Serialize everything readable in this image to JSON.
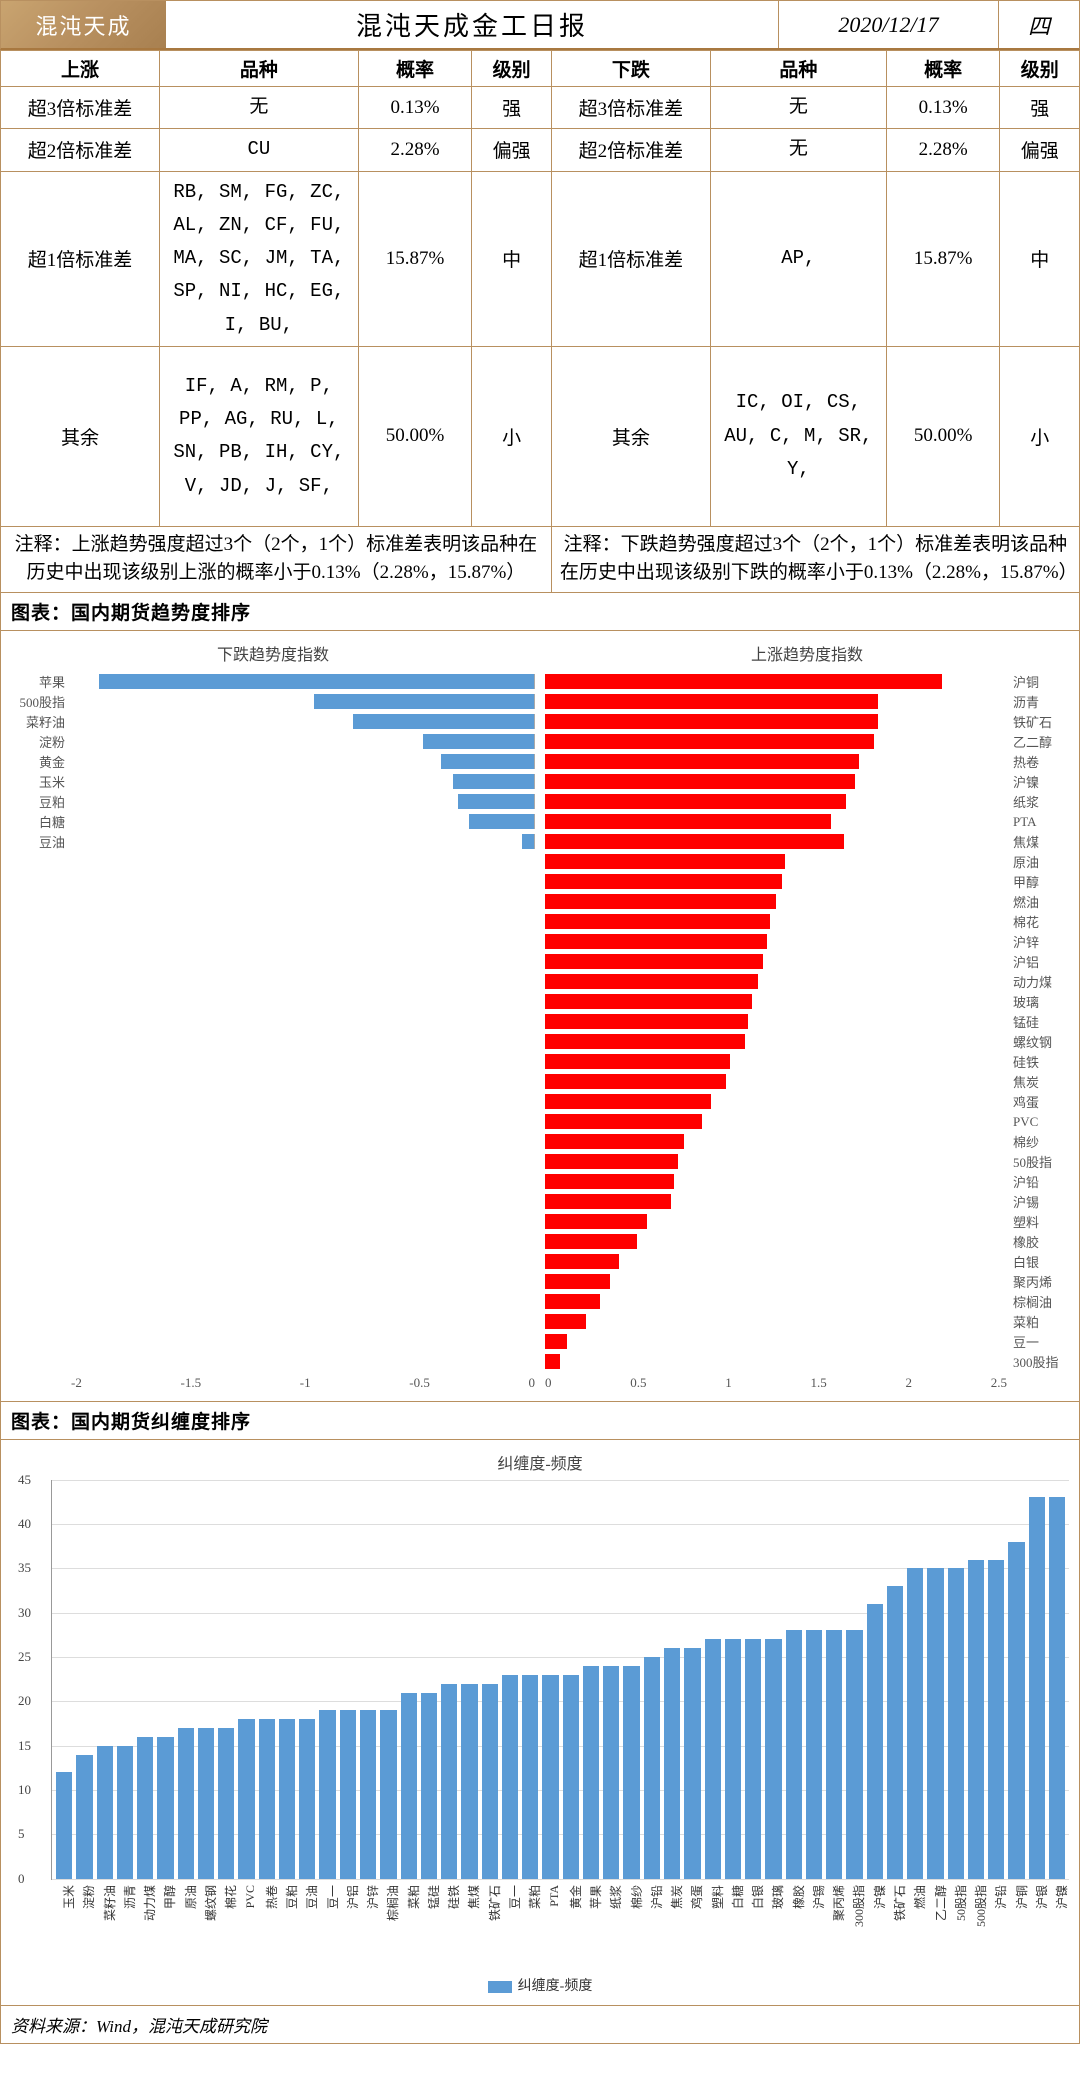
{
  "header": {
    "logo_text": "混沌天成",
    "title": "混沌天成金工日报",
    "date": "2020/12/17",
    "dow": "四"
  },
  "prob_table": {
    "up_header": "上涨",
    "down_header": "下跌",
    "col_variety": "品种",
    "col_prob": "概率",
    "col_level": "级别",
    "rows": [
      {
        "label": "超3倍标准差",
        "up_var": "无",
        "up_prob": "0.13%",
        "up_lvl": "强",
        "down_var": "无",
        "down_prob": "0.13%",
        "down_lvl": "强"
      },
      {
        "label": "超2倍标准差",
        "up_var": "CU",
        "up_prob": "2.28%",
        "up_lvl": "偏强",
        "down_var": "无",
        "down_prob": "2.28%",
        "down_lvl": "偏强"
      },
      {
        "label": "超1倍标准差",
        "up_var": "RB, SM, FG, ZC, AL, ZN, CF, FU, MA, SC, JM, TA, SP, NI, HC, EG, I, BU,",
        "up_prob": "15.87%",
        "up_lvl": "中",
        "down_var": "AP,",
        "down_prob": "15.87%",
        "down_lvl": "中"
      },
      {
        "label": "其余",
        "up_var": "IF, A, RM, P, PP, AG, RU, L, SN, PB, IH, CY, V, JD, J, SF,",
        "up_prob": "50.00%",
        "up_lvl": "小",
        "down_var": "IC, OI, CS, AU, C, M, SR, Y,",
        "down_prob": "50.00%",
        "down_lvl": "小"
      }
    ],
    "note_up": "注释：上涨趋势强度超过3个（2个，1个）标准差表明该品种在历史中出现该级别上涨的概率小于0.13%（2.28%，15.87%）",
    "note_down": "注释：下跌趋势强度超过3个（2个，1个）标准差表明该品种在历史中出现该级别下跌的概率小于0.13%（2.28%，15.87%）"
  },
  "chart1": {
    "section": "图表：国内期货趋势度排序",
    "left_title": "下跌趋势度指数",
    "right_title": "上涨趋势度指数",
    "left_min": -2,
    "left_max": 0,
    "right_min": 0,
    "right_max": 2.5,
    "left_ticks": [
      "-2",
      "-1.5",
      "-1",
      "-0.5",
      "0"
    ],
    "right_ticks": [
      "0",
      "0.5",
      "1",
      "1.5",
      "2",
      "2.5"
    ],
    "color_down": "#5b9bd5",
    "color_up": "#ff0000",
    "down": [
      {
        "name": "苹果",
        "v": -1.88
      },
      {
        "name": "500股指",
        "v": -0.95
      },
      {
        "name": "菜籽油",
        "v": -0.78
      },
      {
        "name": "淀粉",
        "v": -0.48
      },
      {
        "name": "黄金",
        "v": -0.4
      },
      {
        "name": "玉米",
        "v": -0.35
      },
      {
        "name": "豆粕",
        "v": -0.33
      },
      {
        "name": "白糖",
        "v": -0.28
      },
      {
        "name": "豆油",
        "v": -0.05
      }
    ],
    "up": [
      {
        "name": "沪铜",
        "v": 2.15
      },
      {
        "name": "沥青",
        "v": 1.8
      },
      {
        "name": "铁矿石",
        "v": 1.8
      },
      {
        "name": "乙二醇",
        "v": 1.78
      },
      {
        "name": "热卷",
        "v": 1.7
      },
      {
        "name": "沪镍",
        "v": 1.68
      },
      {
        "name": "纸浆",
        "v": 1.63
      },
      {
        "name": "PTA",
        "v": 1.55
      },
      {
        "name": "焦煤",
        "v": 1.62
      },
      {
        "name": "原油",
        "v": 1.3
      },
      {
        "name": "甲醇",
        "v": 1.28
      },
      {
        "name": "燃油",
        "v": 1.25
      },
      {
        "name": "棉花",
        "v": 1.22
      },
      {
        "name": "沪锌",
        "v": 1.2
      },
      {
        "name": "沪铝",
        "v": 1.18
      },
      {
        "name": "动力煤",
        "v": 1.15
      },
      {
        "name": "玻璃",
        "v": 1.12
      },
      {
        "name": "锰硅",
        "v": 1.1
      },
      {
        "name": "螺纹钢",
        "v": 1.08
      },
      {
        "name": "硅铁",
        "v": 1.0
      },
      {
        "name": "焦炭",
        "v": 0.98
      },
      {
        "name": "鸡蛋",
        "v": 0.9
      },
      {
        "name": "PVC",
        "v": 0.85
      },
      {
        "name": "棉纱",
        "v": 0.75
      },
      {
        "name": "50股指",
        "v": 0.72
      },
      {
        "name": "沪铅",
        "v": 0.7
      },
      {
        "name": "沪锡",
        "v": 0.68
      },
      {
        "name": "塑料",
        "v": 0.55
      },
      {
        "name": "橡胶",
        "v": 0.5
      },
      {
        "name": "白银",
        "v": 0.4
      },
      {
        "name": "聚丙烯",
        "v": 0.35
      },
      {
        "name": "棕榈油",
        "v": 0.3
      },
      {
        "name": "菜粕",
        "v": 0.22
      },
      {
        "name": "豆一",
        "v": 0.12
      },
      {
        "name": "300股指",
        "v": 0.08
      }
    ]
  },
  "chart2": {
    "section": "图表：国内期货纠缠度排序",
    "title": "纠缠度-频度",
    "ymax": 45,
    "ystep": 5,
    "color": "#5b9bd5",
    "grid_color": "#dddddd",
    "legend": "纠缠度-频度",
    "bars": [
      {
        "name": "玉米",
        "v": 12
      },
      {
        "name": "淀粉",
        "v": 14
      },
      {
        "name": "菜籽油",
        "v": 15
      },
      {
        "name": "沥青",
        "v": 15
      },
      {
        "name": "动力煤",
        "v": 16
      },
      {
        "name": "甲醇",
        "v": 16
      },
      {
        "name": "原油",
        "v": 17
      },
      {
        "name": "螺纹钢",
        "v": 17
      },
      {
        "name": "棉花",
        "v": 17
      },
      {
        "name": "PVC",
        "v": 18
      },
      {
        "name": "热卷",
        "v": 18
      },
      {
        "name": "豆粕",
        "v": 18
      },
      {
        "name": "豆油",
        "v": 18
      },
      {
        "name": "豆一",
        "v": 19
      },
      {
        "name": "沪铝",
        "v": 19
      },
      {
        "name": "沪锌",
        "v": 19
      },
      {
        "name": "棕榈油",
        "v": 19
      },
      {
        "name": "菜粕",
        "v": 21
      },
      {
        "name": "锰硅",
        "v": 21
      },
      {
        "name": "硅铁",
        "v": 22
      },
      {
        "name": "焦煤",
        "v": 22
      },
      {
        "name": "铁矿石",
        "v": 22
      },
      {
        "name": "豆一",
        "v": 23
      },
      {
        "name": "菜粕",
        "v": 23
      },
      {
        "name": "PTA",
        "v": 23
      },
      {
        "name": "黄金",
        "v": 23
      },
      {
        "name": "苹果",
        "v": 24
      },
      {
        "name": "纸浆",
        "v": 24
      },
      {
        "name": "棉纱",
        "v": 24
      },
      {
        "name": "沪铅",
        "v": 25
      },
      {
        "name": "焦炭",
        "v": 26
      },
      {
        "name": "鸡蛋",
        "v": 26
      },
      {
        "name": "塑料",
        "v": 27
      },
      {
        "name": "白糖",
        "v": 27
      },
      {
        "name": "白银",
        "v": 27
      },
      {
        "name": "玻璃",
        "v": 27
      },
      {
        "name": "橡胶",
        "v": 28
      },
      {
        "name": "沪锡",
        "v": 28
      },
      {
        "name": "聚丙烯",
        "v": 28
      },
      {
        "name": "300股指",
        "v": 28
      },
      {
        "name": "沪镍",
        "v": 31
      },
      {
        "name": "铁矿石",
        "v": 33
      },
      {
        "name": "燃油",
        "v": 35
      },
      {
        "name": "乙二醇",
        "v": 35
      },
      {
        "name": "50股指",
        "v": 35
      },
      {
        "name": "500股指",
        "v": 36
      },
      {
        "name": "沪铅",
        "v": 36
      },
      {
        "name": "沪铜",
        "v": 38
      },
      {
        "name": "沪银",
        "v": 43
      },
      {
        "name": "沪镍",
        "v": 43
      }
    ]
  },
  "footer": "资料来源：Wind，混沌天成研究院"
}
